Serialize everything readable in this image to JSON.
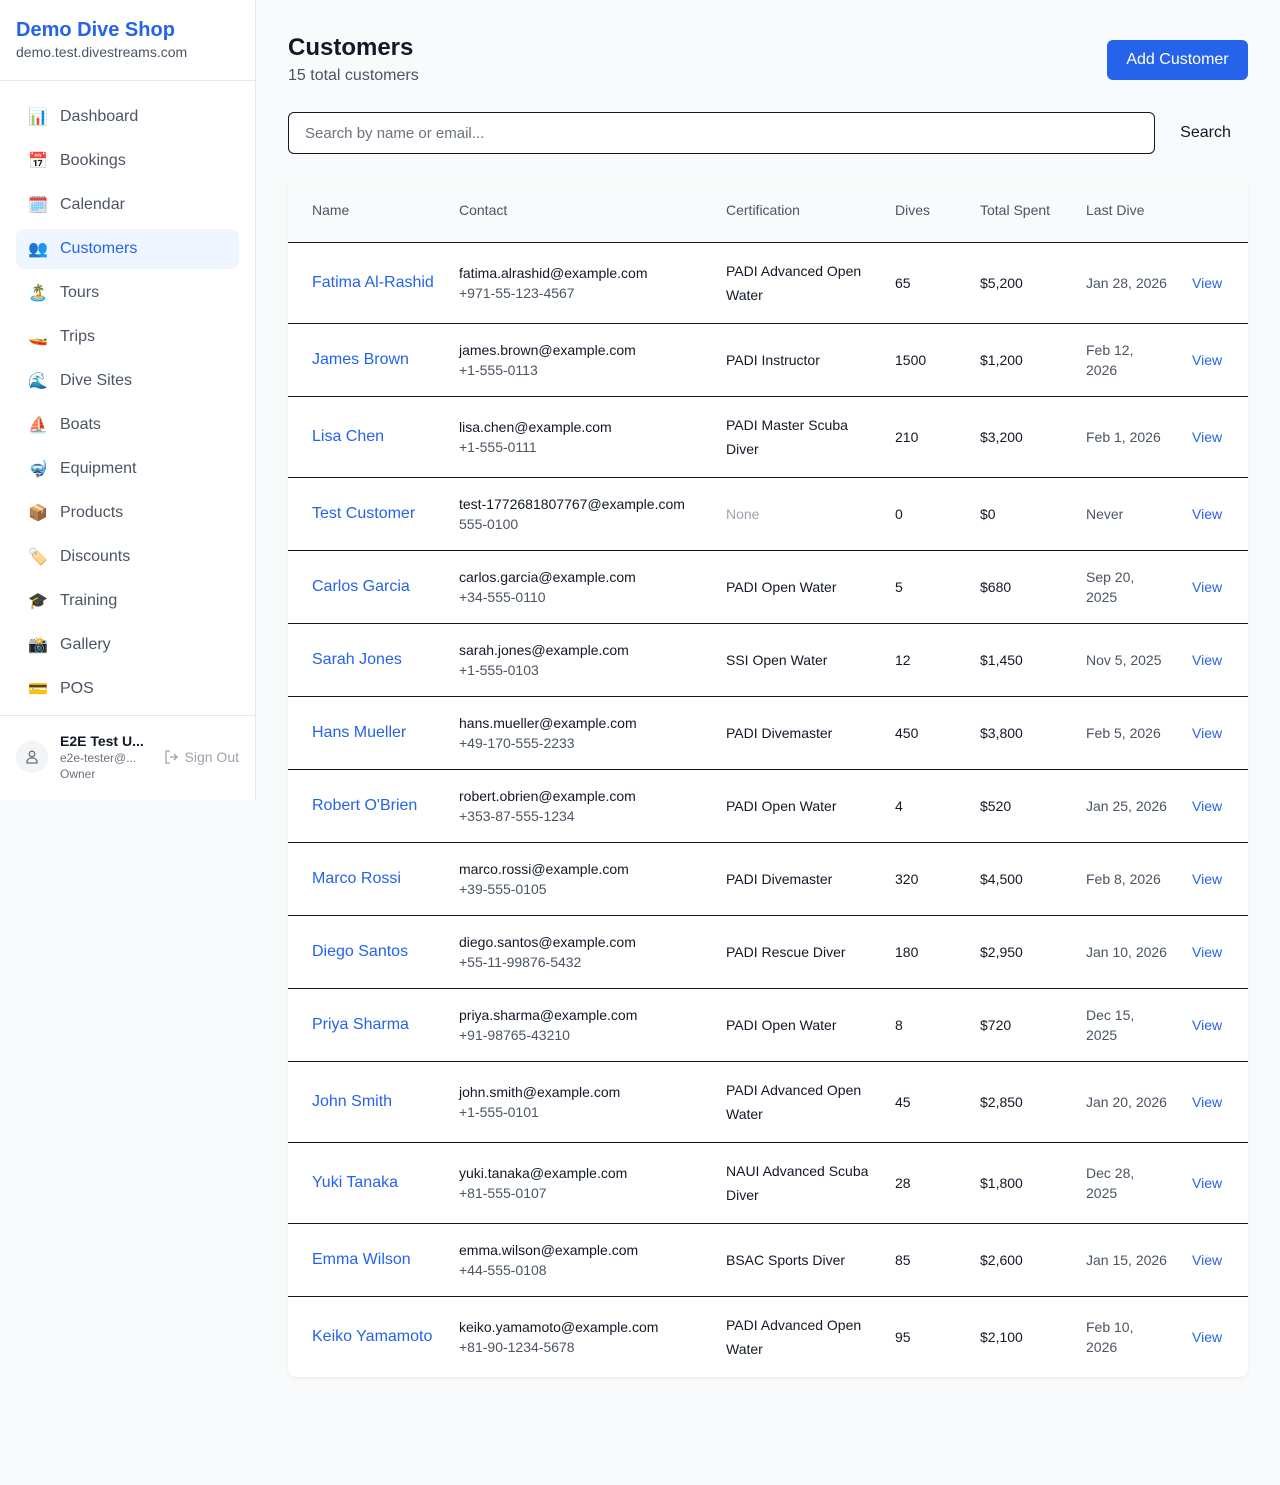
{
  "sidebar": {
    "shop_name": "Demo Dive Shop",
    "domain": "demo.test.divestreams.com",
    "items": [
      {
        "label": "Dashboard",
        "icon": "📊",
        "icon_name": "bar-chart-icon"
      },
      {
        "label": "Bookings",
        "icon": "📅",
        "icon_name": "calendar-date-icon"
      },
      {
        "label": "Calendar",
        "icon": "🗓️",
        "icon_name": "calendar-icon"
      },
      {
        "label": "Customers",
        "icon": "👥",
        "icon_name": "users-icon",
        "active": true
      },
      {
        "label": "Tours",
        "icon": "🏝️",
        "icon_name": "island-icon"
      },
      {
        "label": "Trips",
        "icon": "🚤",
        "icon_name": "speedboat-icon"
      },
      {
        "label": "Dive Sites",
        "icon": "🌊",
        "icon_name": "wave-icon"
      },
      {
        "label": "Boats",
        "icon": "⛵",
        "icon_name": "sailboat-icon"
      },
      {
        "label": "Equipment",
        "icon": "🤿",
        "icon_name": "diving-mask-icon"
      },
      {
        "label": "Products",
        "icon": "📦",
        "icon_name": "package-icon"
      },
      {
        "label": "Discounts",
        "icon": "🏷️",
        "icon_name": "tag-icon"
      },
      {
        "label": "Training",
        "icon": "🎓",
        "icon_name": "graduation-cap-icon"
      },
      {
        "label": "Gallery",
        "icon": "📸",
        "icon_name": "camera-icon"
      },
      {
        "label": "POS",
        "icon": "💳",
        "icon_name": "credit-card-icon"
      }
    ],
    "user": {
      "name": "E2E Test U...",
      "email": "e2e-tester@...",
      "role": "Owner",
      "sign_out": "Sign Out"
    }
  },
  "header": {
    "title": "Customers",
    "subtitle": "15 total customers",
    "add_button": "Add Customer"
  },
  "search": {
    "placeholder": "Search by name or email...",
    "value": "",
    "button": "Search"
  },
  "table": {
    "columns": [
      "Name",
      "Contact",
      "Certification",
      "Dives",
      "Total Spent",
      "Last Dive",
      ""
    ],
    "rows": [
      {
        "name": "Fatima Al-Rashid",
        "email": "fatima.alrashid@example.com",
        "phone": "+971-55-123-4567",
        "cert": "PADI Advanced Open Water",
        "dives": "65",
        "spent": "$5,200",
        "last": "Jan 28, 2026",
        "action": "View"
      },
      {
        "name": "James Brown",
        "email": "james.brown@example.com",
        "phone": "+1-555-0113",
        "cert": "PADI Instructor",
        "dives": "1500",
        "spent": "$1,200",
        "last": "Feb 12, 2026",
        "action": "View"
      },
      {
        "name": "Lisa Chen",
        "email": "lisa.chen@example.com",
        "phone": "+1-555-0111",
        "cert": "PADI Master Scuba Diver",
        "dives": "210",
        "spent": "$3,200",
        "last": "Feb 1, 2026",
        "action": "View"
      },
      {
        "name": "Test Customer",
        "email": "test-1772681807767@example.com",
        "phone": "555-0100",
        "cert": "None",
        "dives": "0",
        "spent": "$0",
        "last": "Never",
        "action": "View"
      },
      {
        "name": "Carlos Garcia",
        "email": "carlos.garcia@example.com",
        "phone": "+34-555-0110",
        "cert": "PADI Open Water",
        "dives": "5",
        "spent": "$680",
        "last": "Sep 20, 2025",
        "action": "View"
      },
      {
        "name": "Sarah Jones",
        "email": "sarah.jones@example.com",
        "phone": "+1-555-0103",
        "cert": "SSI Open Water",
        "dives": "12",
        "spent": "$1,450",
        "last": "Nov 5, 2025",
        "action": "View"
      },
      {
        "name": "Hans Mueller",
        "email": "hans.mueller@example.com",
        "phone": "+49-170-555-2233",
        "cert": "PADI Divemaster",
        "dives": "450",
        "spent": "$3,800",
        "last": "Feb 5, 2026",
        "action": "View"
      },
      {
        "name": "Robert O'Brien",
        "email": "robert.obrien@example.com",
        "phone": "+353-87-555-1234",
        "cert": "PADI Open Water",
        "dives": "4",
        "spent": "$520",
        "last": "Jan 25, 2026",
        "action": "View"
      },
      {
        "name": "Marco Rossi",
        "email": "marco.rossi@example.com",
        "phone": "+39-555-0105",
        "cert": "PADI Divemaster",
        "dives": "320",
        "spent": "$4,500",
        "last": "Feb 8, 2026",
        "action": "View"
      },
      {
        "name": "Diego Santos",
        "email": "diego.santos@example.com",
        "phone": "+55-11-99876-5432",
        "cert": "PADI Rescue Diver",
        "dives": "180",
        "spent": "$2,950",
        "last": "Jan 10, 2026",
        "action": "View"
      },
      {
        "name": "Priya Sharma",
        "email": "priya.sharma@example.com",
        "phone": "+91-98765-43210",
        "cert": "PADI Open Water",
        "dives": "8",
        "spent": "$720",
        "last": "Dec 15, 2025",
        "action": "View"
      },
      {
        "name": "John Smith",
        "email": "john.smith@example.com",
        "phone": "+1-555-0101",
        "cert": "PADI Advanced Open Water",
        "dives": "45",
        "spent": "$2,850",
        "last": "Jan 20, 2026",
        "action": "View"
      },
      {
        "name": "Yuki Tanaka",
        "email": "yuki.tanaka@example.com",
        "phone": "+81-555-0107",
        "cert": "NAUI Advanced Scuba Diver",
        "dives": "28",
        "spent": "$1,800",
        "last": "Dec 28, 2025",
        "action": "View"
      },
      {
        "name": "Emma Wilson",
        "email": "emma.wilson@example.com",
        "phone": "+44-555-0108",
        "cert": "BSAC Sports Diver",
        "dives": "85",
        "spent": "$2,600",
        "last": "Jan 15, 2026",
        "action": "View"
      },
      {
        "name": "Keiko Yamamoto",
        "email": "keiko.yamamoto@example.com",
        "phone": "+81-90-1234-5678",
        "cert": "PADI Advanced Open Water",
        "dives": "95",
        "spent": "$2,100",
        "last": "Feb 10, 2026",
        "action": "View"
      }
    ]
  },
  "colors": {
    "accent": "#2563eb",
    "active_bg": "#eff6ff"
  }
}
